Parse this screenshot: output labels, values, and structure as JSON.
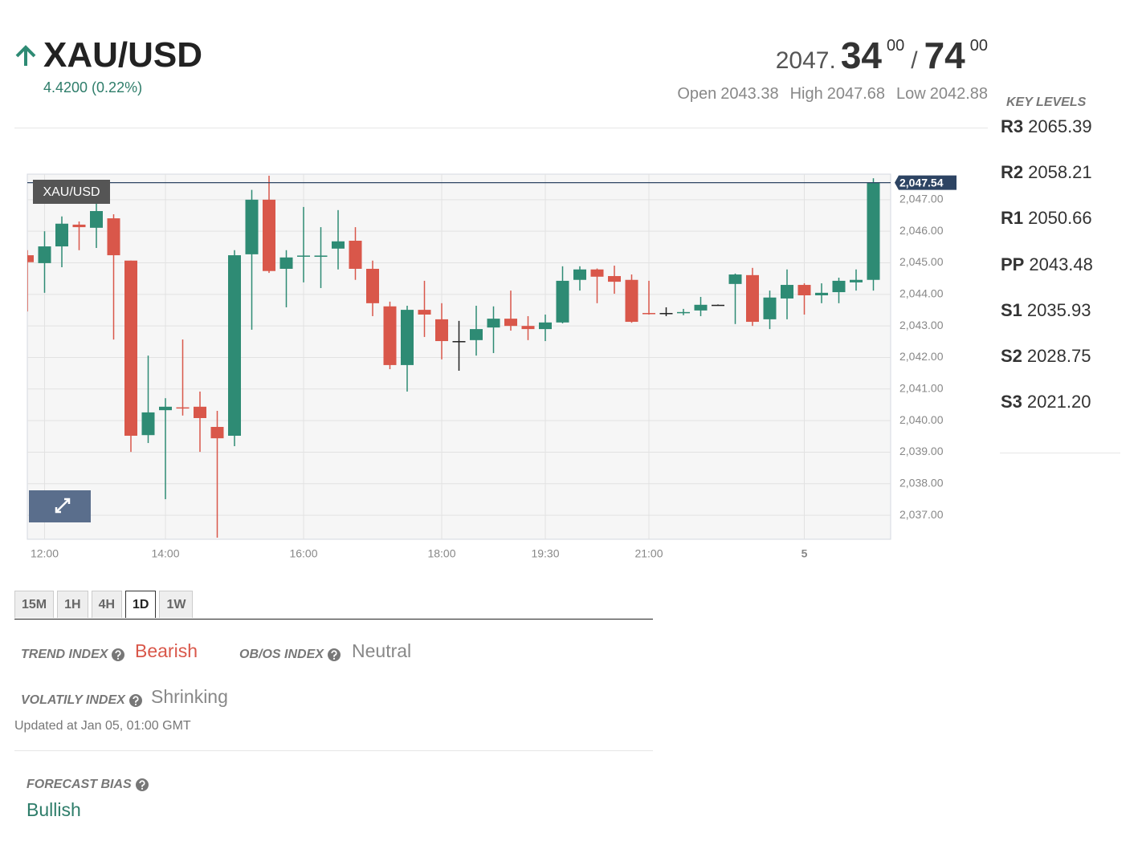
{
  "header": {
    "symbol": "XAU/USD",
    "change": "4.4200 (0.22%)"
  },
  "quote": {
    "bid_int": "2047.",
    "bid_big": "34",
    "bid_small": "00",
    "separator": "/",
    "ask_big": "74",
    "ask_small": "00",
    "stats": [
      {
        "label": "Open",
        "value": "2043.38"
      },
      {
        "label": "High",
        "value": "2047.68"
      },
      {
        "label": "Low",
        "value": "2042.88"
      }
    ]
  },
  "key_levels": {
    "title": "KEY LEVELS",
    "levels": [
      {
        "name": "R3",
        "value": "2065.39"
      },
      {
        "name": "R2",
        "value": "2058.21"
      },
      {
        "name": "R1",
        "value": "2050.66"
      },
      {
        "name": "PP",
        "value": "2043.48"
      },
      {
        "name": "S1",
        "value": "2035.93"
      },
      {
        "name": "S2",
        "value": "2028.75"
      },
      {
        "name": "S3",
        "value": "2021.20"
      }
    ]
  },
  "chart_data": {
    "type": "candlestick",
    "series_label": "XAU/USD",
    "categories": [
      null,
      "12:00",
      null,
      null,
      null,
      null,
      null,
      null,
      "14:00",
      null,
      null,
      null,
      null,
      null,
      null,
      null,
      "16:00",
      null,
      null,
      null,
      null,
      null,
      null,
      null,
      "18:00",
      null,
      null,
      null,
      null,
      null,
      "19:30",
      null,
      null,
      null,
      null,
      null,
      "21:00",
      null,
      null,
      null,
      null,
      null,
      null,
      null,
      null,
      "5",
      null,
      null,
      null,
      null
    ],
    "open": [
      2045.24,
      2044.99,
      2045.52,
      2046.21,
      2046.11,
      2046.41,
      2045.07,
      2039.54,
      2040.33,
      2040.42,
      2040.44,
      2039.8,
      2039.52,
      2045.27,
      2047.0,
      2044.81,
      2045.2,
      2045.19,
      2045.45,
      2045.7,
      2044.81,
      2043.62,
      2041.76,
      2043.51,
      2043.21,
      2042.52,
      2042.55,
      2042.95,
      2043.23,
      2043.0,
      2042.9,
      2043.11,
      2044.46,
      2044.79,
      2044.58,
      2044.46,
      2043.41,
      2043.41,
      2043.41,
      2043.49,
      2043.67,
      2044.33,
      2044.61,
      2043.21,
      2043.87,
      2044.3,
      2043.97,
      2044.07,
      2044.38,
      2044.46
    ],
    "high": [
      2045.4,
      2046.0,
      2046.47,
      2046.31,
      2047.08,
      2046.54,
      2045.07,
      2042.06,
      2040.71,
      2042.57,
      2040.92,
      2040.31,
      2045.4,
      2047.31,
      2047.76,
      2045.4,
      2046.77,
      2046.13,
      2046.67,
      2046.13,
      2045.07,
      2043.77,
      2043.64,
      2044.43,
      2043.72,
      2043.16,
      2043.64,
      2043.62,
      2044.12,
      2043.31,
      2043.36,
      2044.89,
      2044.89,
      2044.82,
      2044.91,
      2044.63,
      2044.43,
      2043.59,
      2043.54,
      2043.92,
      2043.68,
      2044.66,
      2044.84,
      2044.12,
      2044.79,
      2044.35,
      2044.35,
      2044.53,
      2044.79,
      2047.68
    ],
    "low": [
      2043.46,
      2044.05,
      2044.86,
      2045.4,
      2045.47,
      2042.57,
      2039.01,
      2039.29,
      2037.51,
      2040.16,
      2039.01,
      2036.29,
      2039.19,
      2042.88,
      2044.68,
      2043.59,
      2044.38,
      2044.2,
      2044.79,
      2044.46,
      2043.31,
      2041.63,
      2040.92,
      2042.65,
      2041.94,
      2041.58,
      2042.06,
      2042.14,
      2042.85,
      2042.55,
      2042.52,
      2043.08,
      2044.12,
      2043.72,
      2044.02,
      2043.1,
      2043.36,
      2043.31,
      2043.34,
      2043.31,
      2043.66,
      2043.06,
      2043.0,
      2042.9,
      2043.21,
      2043.36,
      2043.72,
      2043.72,
      2044.12,
      2044.12
    ],
    "close": [
      2045.02,
      2045.52,
      2046.24,
      2046.13,
      2046.64,
      2045.24,
      2039.52,
      2040.26,
      2040.44,
      2040.4,
      2040.08,
      2039.44,
      2045.24,
      2047.0,
      2044.74,
      2045.17,
      2045.23,
      2045.23,
      2045.68,
      2044.81,
      2043.72,
      2041.76,
      2043.51,
      2043.36,
      2042.52,
      2042.52,
      2042.9,
      2043.23,
      2043.0,
      2042.9,
      2043.11,
      2044.43,
      2044.79,
      2044.56,
      2044.4,
      2043.13,
      2043.39,
      2043.41,
      2043.44,
      2043.67,
      2043.67,
      2044.63,
      2043.13,
      2043.9,
      2044.3,
      2043.97,
      2044.05,
      2044.43,
      2044.46,
      2047.54
    ],
    "up_color": "#2e8b74",
    "down_color": "#d9574a",
    "flat_color": "#222222",
    "ylim": [
      2036.24,
      2047.81
    ],
    "yticks": [
      {
        "value": 2037,
        "label": "2,037.00"
      },
      {
        "value": 2038,
        "label": "2,038.00"
      },
      {
        "value": 2039,
        "label": "2,039.00"
      },
      {
        "value": 2040,
        "label": "2,040.00"
      },
      {
        "value": 2041,
        "label": "2,041.00"
      },
      {
        "value": 2042,
        "label": "2,042.00"
      },
      {
        "value": 2043,
        "label": "2,043.00"
      },
      {
        "value": 2044,
        "label": "2,044.00"
      },
      {
        "value": 2045,
        "label": "2,045.00"
      },
      {
        "value": 2046,
        "label": "2,046.00"
      },
      {
        "value": 2047,
        "label": "2,047.00"
      }
    ],
    "last_price": {
      "value": 2047.54,
      "label": "2,047.54"
    },
    "grid": true
  },
  "tabs": [
    "15M",
    "1H",
    "4H",
    "1D",
    "1W"
  ],
  "indices": [
    {
      "label": "TREND INDEX",
      "value": "Bearish"
    },
    {
      "label": "OB/OS INDEX",
      "value": "Neutral"
    },
    {
      "label": "VOLATILY INDEX",
      "value": "Shrinking"
    }
  ],
  "updated": "Updated at Jan 05, 01:00 GMT",
  "forecast": {
    "label": "FORECAST BIAS",
    "value": "Bullish"
  }
}
